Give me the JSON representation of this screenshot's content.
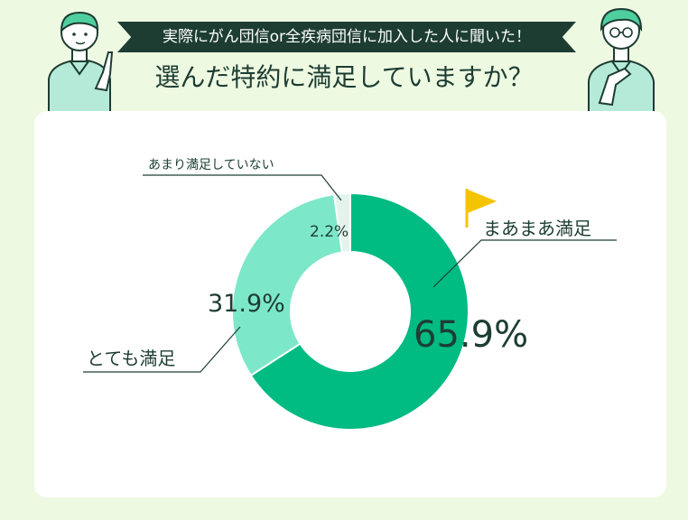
{
  "header": {
    "banner_text": "実際にがん団信or全疾病団信に加入した人に聞いた！",
    "title": "選んだ特約に満足していますか？"
  },
  "colors": {
    "background": "#eef9e2",
    "banner": "#1d3d33",
    "very_satisfied": "#7de7c9",
    "somewhat_satisfied": "#00bb82",
    "not_satisfied": "#e3f4ec",
    "flag": "#f5c400"
  },
  "icons": [
    "person-pointing-icon",
    "person-thinking-icon",
    "flag-icon"
  ],
  "chart_data": {
    "type": "pie",
    "variant": "donut",
    "start_angle_deg": 0,
    "direction": "clockwise",
    "slices": [
      {
        "label": "まあまあ満足",
        "value": 65.9,
        "value_label": "65.9%",
        "color": "#00bb82"
      },
      {
        "label": "とても満足",
        "value": 31.9,
        "value_label": "31.9%",
        "color": "#7de7c9"
      },
      {
        "label": "あまり満足していない",
        "value": 2.2,
        "value_label": "2.2%",
        "color": "#e3f4ec"
      }
    ],
    "highlight": "まあまあ満足"
  }
}
